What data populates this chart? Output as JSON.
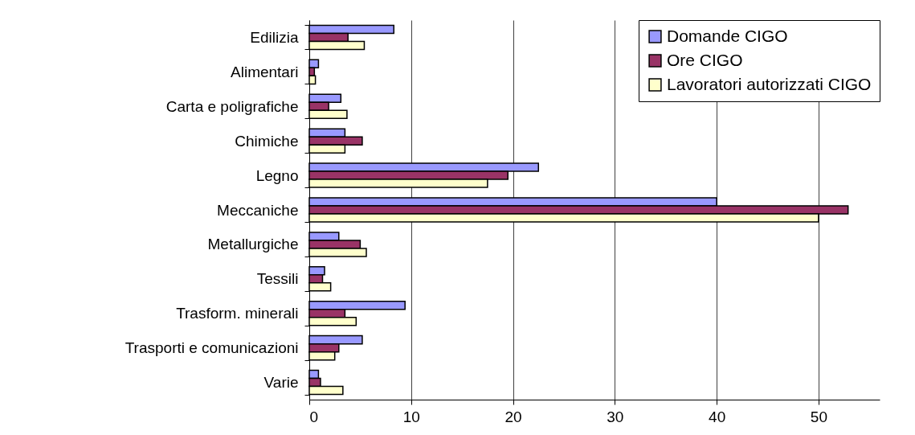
{
  "chart_data": {
    "type": "bar",
    "orientation": "horizontal",
    "categories": [
      "Edilizia",
      "Alimentari",
      "Carta e poligrafiche",
      "Chimiche",
      "Legno",
      "Meccaniche",
      "Metallurgiche",
      "Tessili",
      "Trasform. minerali",
      "Trasporti e comunicazioni",
      "Varie"
    ],
    "series": [
      {
        "name": "Domande CIGO",
        "color": "#9999ff",
        "values": [
          8.3,
          0.9,
          3.1,
          3.5,
          22.5,
          40,
          2.9,
          1.5,
          9.4,
          5.2,
          0.9
        ]
      },
      {
        "name": "Ore CIGO",
        "color": "#993366",
        "values": [
          3.8,
          0.5,
          1.9,
          5.2,
          19.5,
          52.9,
          5.0,
          1.3,
          3.5,
          2.9,
          1.1
        ]
      },
      {
        "name": "Lavoratori autorizzati CIGO",
        "color": "#ffffcc",
        "values": [
          5.4,
          0.6,
          3.7,
          3.5,
          17.5,
          50,
          5.6,
          2.1,
          4.6,
          2.5,
          3.3
        ]
      }
    ],
    "xlim": [
      0,
      56
    ],
    "xticks": [
      0,
      10,
      20,
      30,
      40,
      50
    ],
    "grid": "x",
    "legend": "top right"
  }
}
